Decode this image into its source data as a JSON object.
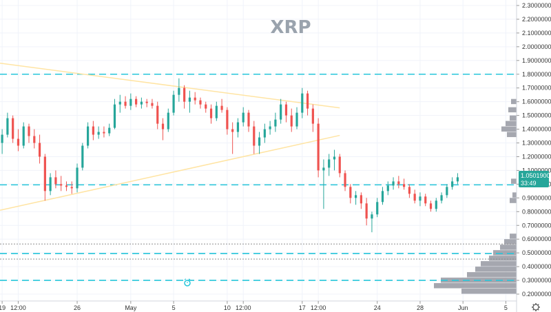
{
  "chart_data": {
    "type": "candlestick",
    "title": "XRP",
    "symbol": "XRP",
    "y_ticks": [
      "0.20000000",
      "0.30000000",
      "0.40000000",
      "0.50000000",
      "0.60000000",
      "0.70000000",
      "0.80000000",
      "0.90000000",
      "1.00000000",
      "1.10000000",
      "1.20000000",
      "1.30000000",
      "1.40000000",
      "1.50000000",
      "1.60000000",
      "1.70000000",
      "1.80000000",
      "1.90000000",
      "2.00000000",
      "2.10000000",
      "2.20000000",
      "2.30000000"
    ],
    "ylim": [
      0.15,
      2.34
    ],
    "x_ticks": [
      "19",
      "12:00",
      "26",
      "May",
      "5",
      "10",
      "12:00",
      "17",
      "12:00",
      "24",
      "28",
      "Jun",
      "5"
    ],
    "x_tick_days": [
      -12,
      -10.5,
      -5,
      0,
      4,
      9,
      10.5,
      16,
      17.5,
      23,
      27,
      31,
      35
    ],
    "xlim_days": [
      -12.2,
      36
    ],
    "last_price": "1.05019000",
    "countdown": "33:49",
    "horizontal_levels": [
      {
        "y": 1.8,
        "style": "dashed",
        "color": "#26c6da"
      },
      {
        "y": 0.995,
        "style": "dashed",
        "color": "#26c6da"
      },
      {
        "y": 0.495,
        "style": "dashed",
        "color": "#26c6da"
      },
      {
        "y": 0.3,
        "style": "dashed",
        "color": "#26c6da"
      },
      {
        "y": 0.565,
        "style": "dotted",
        "color": "#8e8e8e"
      },
      {
        "y": 0.455,
        "style": "dotted",
        "color": "#8e8e8e"
      }
    ],
    "trendlines": [
      {
        "x1": -12.2,
        "y1": 1.88,
        "x2": 19.5,
        "y2": 1.555,
        "color": "#ffe4a3"
      },
      {
        "x1": -12.2,
        "y1": 0.81,
        "x2": 19.5,
        "y2": 1.355,
        "color": "#ffe4a3"
      }
    ],
    "volume_profile": [
      {
        "price": 0.88,
        "width": 10
      },
      {
        "price": 0.92,
        "width": 6
      },
      {
        "price": 1.02,
        "width": 8
      },
      {
        "price": 1.36,
        "width": 14
      },
      {
        "price": 1.4,
        "width": 22
      },
      {
        "price": 1.44,
        "width": 16
      },
      {
        "price": 1.48,
        "width": 10
      },
      {
        "price": 1.54,
        "width": 12
      },
      {
        "price": 1.6,
        "width": 8
      },
      {
        "price": 0.22,
        "width": 80
      },
      {
        "price": 0.26,
        "width": 120
      },
      {
        "price": 0.3,
        "width": 110
      },
      {
        "price": 0.34,
        "width": 72
      },
      {
        "price": 0.38,
        "width": 60
      },
      {
        "price": 0.42,
        "width": 52
      },
      {
        "price": 0.46,
        "width": 40
      },
      {
        "price": 0.5,
        "width": 34
      },
      {
        "price": 0.54,
        "width": 24
      },
      {
        "price": 0.58,
        "width": 18
      },
      {
        "price": 0.62,
        "width": 10
      }
    ],
    "colors": {
      "up": "#26a69a",
      "down": "#ef5350",
      "level": "#26c6da",
      "price_tag": "#26a69a"
    },
    "candles": [
      {
        "t": -12.0,
        "o": 1.3,
        "h": 1.4,
        "l": 1.22,
        "c": 1.36
      },
      {
        "t": -11.5,
        "o": 1.36,
        "h": 1.52,
        "l": 1.34,
        "c": 1.48
      },
      {
        "t": -11.0,
        "o": 1.48,
        "h": 1.5,
        "l": 1.3,
        "c": 1.33
      },
      {
        "t": -10.5,
        "o": 1.33,
        "h": 1.4,
        "l": 1.24,
        "c": 1.28
      },
      {
        "t": -10.0,
        "o": 1.28,
        "h": 1.45,
        "l": 1.26,
        "c": 1.42
      },
      {
        "t": -9.5,
        "o": 1.42,
        "h": 1.44,
        "l": 1.3,
        "c": 1.35
      },
      {
        "t": -9.0,
        "o": 1.35,
        "h": 1.4,
        "l": 1.26,
        "c": 1.3
      },
      {
        "t": -8.5,
        "o": 1.3,
        "h": 1.36,
        "l": 1.15,
        "c": 1.2
      },
      {
        "t": -8.0,
        "o": 1.2,
        "h": 1.22,
        "l": 0.88,
        "c": 0.95
      },
      {
        "t": -7.5,
        "o": 0.95,
        "h": 1.08,
        "l": 0.92,
        "c": 1.05
      },
      {
        "t": -7.0,
        "o": 1.05,
        "h": 1.1,
        "l": 0.97,
        "c": 1.0
      },
      {
        "t": -6.5,
        "o": 1.0,
        "h": 1.06,
        "l": 0.95,
        "c": 0.99
      },
      {
        "t": -6.0,
        "o": 0.99,
        "h": 1.02,
        "l": 0.95,
        "c": 0.98
      },
      {
        "t": -5.5,
        "o": 0.98,
        "h": 1.02,
        "l": 0.93,
        "c": 0.97
      },
      {
        "t": -5.0,
        "o": 0.97,
        "h": 1.15,
        "l": 0.94,
        "c": 1.12
      },
      {
        "t": -4.5,
        "o": 1.12,
        "h": 1.3,
        "l": 1.1,
        "c": 1.28
      },
      {
        "t": -4.0,
        "o": 1.28,
        "h": 1.45,
        "l": 1.26,
        "c": 1.42
      },
      {
        "t": -3.5,
        "o": 1.42,
        "h": 1.46,
        "l": 1.32,
        "c": 1.36
      },
      {
        "t": -3.0,
        "o": 1.36,
        "h": 1.42,
        "l": 1.33,
        "c": 1.38
      },
      {
        "t": -2.5,
        "o": 1.38,
        "h": 1.42,
        "l": 1.34,
        "c": 1.37
      },
      {
        "t": -2.0,
        "o": 1.37,
        "h": 1.44,
        "l": 1.35,
        "c": 1.41
      },
      {
        "t": -1.5,
        "o": 1.41,
        "h": 1.62,
        "l": 1.4,
        "c": 1.58
      },
      {
        "t": -1.0,
        "o": 1.58,
        "h": 1.65,
        "l": 1.52,
        "c": 1.6
      },
      {
        "t": -0.5,
        "o": 1.6,
        "h": 1.64,
        "l": 1.55,
        "c": 1.57
      },
      {
        "t": 0.0,
        "o": 1.57,
        "h": 1.66,
        "l": 1.54,
        "c": 1.62
      },
      {
        "t": 0.5,
        "o": 1.62,
        "h": 1.64,
        "l": 1.56,
        "c": 1.58
      },
      {
        "t": 1.0,
        "o": 1.58,
        "h": 1.63,
        "l": 1.55,
        "c": 1.6
      },
      {
        "t": 1.5,
        "o": 1.6,
        "h": 1.62,
        "l": 1.56,
        "c": 1.59
      },
      {
        "t": 2.0,
        "o": 1.59,
        "h": 1.62,
        "l": 1.55,
        "c": 1.57
      },
      {
        "t": 2.5,
        "o": 1.57,
        "h": 1.6,
        "l": 1.4,
        "c": 1.44
      },
      {
        "t": 3.0,
        "o": 1.44,
        "h": 1.48,
        "l": 1.32,
        "c": 1.4
      },
      {
        "t": 3.5,
        "o": 1.4,
        "h": 1.55,
        "l": 1.38,
        "c": 1.52
      },
      {
        "t": 4.0,
        "o": 1.52,
        "h": 1.68,
        "l": 1.5,
        "c": 1.65
      },
      {
        "t": 4.5,
        "o": 1.65,
        "h": 1.77,
        "l": 1.6,
        "c": 1.7
      },
      {
        "t": 5.0,
        "o": 1.7,
        "h": 1.72,
        "l": 1.55,
        "c": 1.6
      },
      {
        "t": 5.5,
        "o": 1.6,
        "h": 1.68,
        "l": 1.52,
        "c": 1.63
      },
      {
        "t": 6.0,
        "o": 1.63,
        "h": 1.67,
        "l": 1.58,
        "c": 1.61
      },
      {
        "t": 6.5,
        "o": 1.61,
        "h": 1.63,
        "l": 1.55,
        "c": 1.58
      },
      {
        "t": 7.0,
        "o": 1.58,
        "h": 1.6,
        "l": 1.52,
        "c": 1.55
      },
      {
        "t": 7.5,
        "o": 1.55,
        "h": 1.58,
        "l": 1.44,
        "c": 1.48
      },
      {
        "t": 8.0,
        "o": 1.48,
        "h": 1.6,
        "l": 1.46,
        "c": 1.57
      },
      {
        "t": 8.5,
        "o": 1.57,
        "h": 1.62,
        "l": 1.52,
        "c": 1.54
      },
      {
        "t": 9.0,
        "o": 1.54,
        "h": 1.56,
        "l": 1.36,
        "c": 1.4
      },
      {
        "t": 9.5,
        "o": 1.4,
        "h": 1.45,
        "l": 1.22,
        "c": 1.38
      },
      {
        "t": 10.0,
        "o": 1.38,
        "h": 1.48,
        "l": 1.34,
        "c": 1.45
      },
      {
        "t": 10.5,
        "o": 1.45,
        "h": 1.56,
        "l": 1.42,
        "c": 1.52
      },
      {
        "t": 11.0,
        "o": 1.52,
        "h": 1.54,
        "l": 1.38,
        "c": 1.42
      },
      {
        "t": 11.5,
        "o": 1.42,
        "h": 1.46,
        "l": 1.22,
        "c": 1.28
      },
      {
        "t": 12.0,
        "o": 1.28,
        "h": 1.38,
        "l": 1.22,
        "c": 1.34
      },
      {
        "t": 12.5,
        "o": 1.34,
        "h": 1.44,
        "l": 1.3,
        "c": 1.4
      },
      {
        "t": 13.0,
        "o": 1.4,
        "h": 1.46,
        "l": 1.36,
        "c": 1.42
      },
      {
        "t": 13.5,
        "o": 1.42,
        "h": 1.52,
        "l": 1.38,
        "c": 1.47
      },
      {
        "t": 14.0,
        "o": 1.47,
        "h": 1.62,
        "l": 1.44,
        "c": 1.58
      },
      {
        "t": 14.5,
        "o": 1.58,
        "h": 1.6,
        "l": 1.45,
        "c": 1.5
      },
      {
        "t": 15.0,
        "o": 1.5,
        "h": 1.55,
        "l": 1.38,
        "c": 1.42
      },
      {
        "t": 15.5,
        "o": 1.42,
        "h": 1.56,
        "l": 1.4,
        "c": 1.52
      },
      {
        "t": 16.0,
        "o": 1.52,
        "h": 1.7,
        "l": 1.48,
        "c": 1.66
      },
      {
        "t": 16.5,
        "o": 1.66,
        "h": 1.68,
        "l": 1.5,
        "c": 1.55
      },
      {
        "t": 17.0,
        "o": 1.55,
        "h": 1.58,
        "l": 1.38,
        "c": 1.44
      },
      {
        "t": 17.5,
        "o": 1.44,
        "h": 1.48,
        "l": 1.05,
        "c": 1.1
      },
      {
        "t": 18.0,
        "o": 1.1,
        "h": 1.18,
        "l": 0.82,
        "c": 1.12
      },
      {
        "t": 18.5,
        "o": 1.12,
        "h": 1.22,
        "l": 1.06,
        "c": 1.18
      },
      {
        "t": 19.0,
        "o": 1.18,
        "h": 1.25,
        "l": 1.1,
        "c": 1.2
      },
      {
        "t": 19.5,
        "o": 1.2,
        "h": 1.22,
        "l": 1.05,
        "c": 1.08
      },
      {
        "t": 20.0,
        "o": 1.08,
        "h": 1.1,
        "l": 0.95,
        "c": 0.98
      },
      {
        "t": 20.5,
        "o": 0.98,
        "h": 1.0,
        "l": 0.86,
        "c": 0.9
      },
      {
        "t": 21.0,
        "o": 0.9,
        "h": 0.95,
        "l": 0.85,
        "c": 0.92
      },
      {
        "t": 21.5,
        "o": 0.92,
        "h": 0.94,
        "l": 0.82,
        "c": 0.86
      },
      {
        "t": 22.0,
        "o": 0.86,
        "h": 0.9,
        "l": 0.7,
        "c": 0.75
      },
      {
        "t": 22.5,
        "o": 0.75,
        "h": 0.8,
        "l": 0.65,
        "c": 0.78
      },
      {
        "t": 23.0,
        "o": 0.78,
        "h": 0.9,
        "l": 0.76,
        "c": 0.87
      },
      {
        "t": 23.5,
        "o": 0.87,
        "h": 0.98,
        "l": 0.85,
        "c": 0.95
      },
      {
        "t": 24.0,
        "o": 0.95,
        "h": 1.02,
        "l": 0.92,
        "c": 0.99
      },
      {
        "t": 24.5,
        "o": 0.99,
        "h": 1.05,
        "l": 0.96,
        "c": 1.02
      },
      {
        "t": 25.0,
        "o": 1.02,
        "h": 1.06,
        "l": 0.97,
        "c": 1.0
      },
      {
        "t": 25.5,
        "o": 1.0,
        "h": 1.04,
        "l": 0.96,
        "c": 0.98
      },
      {
        "t": 26.0,
        "o": 0.98,
        "h": 1.0,
        "l": 0.9,
        "c": 0.93
      },
      {
        "t": 26.5,
        "o": 0.93,
        "h": 0.96,
        "l": 0.86,
        "c": 0.88
      },
      {
        "t": 27.0,
        "o": 0.88,
        "h": 0.94,
        "l": 0.84,
        "c": 0.91
      },
      {
        "t": 27.5,
        "o": 0.91,
        "h": 0.93,
        "l": 0.84,
        "c": 0.86
      },
      {
        "t": 28.0,
        "o": 0.86,
        "h": 0.88,
        "l": 0.8,
        "c": 0.82
      },
      {
        "t": 28.5,
        "o": 0.82,
        "h": 0.9,
        "l": 0.8,
        "c": 0.88
      },
      {
        "t": 29.0,
        "o": 0.88,
        "h": 0.94,
        "l": 0.86,
        "c": 0.92
      },
      {
        "t": 29.5,
        "o": 0.92,
        "h": 1.0,
        "l": 0.9,
        "c": 0.98
      },
      {
        "t": 30.0,
        "o": 0.98,
        "h": 1.05,
        "l": 0.96,
        "c": 1.02
      },
      {
        "t": 30.5,
        "o": 1.02,
        "h": 1.08,
        "l": 1.0,
        "c": 1.05
      }
    ]
  }
}
